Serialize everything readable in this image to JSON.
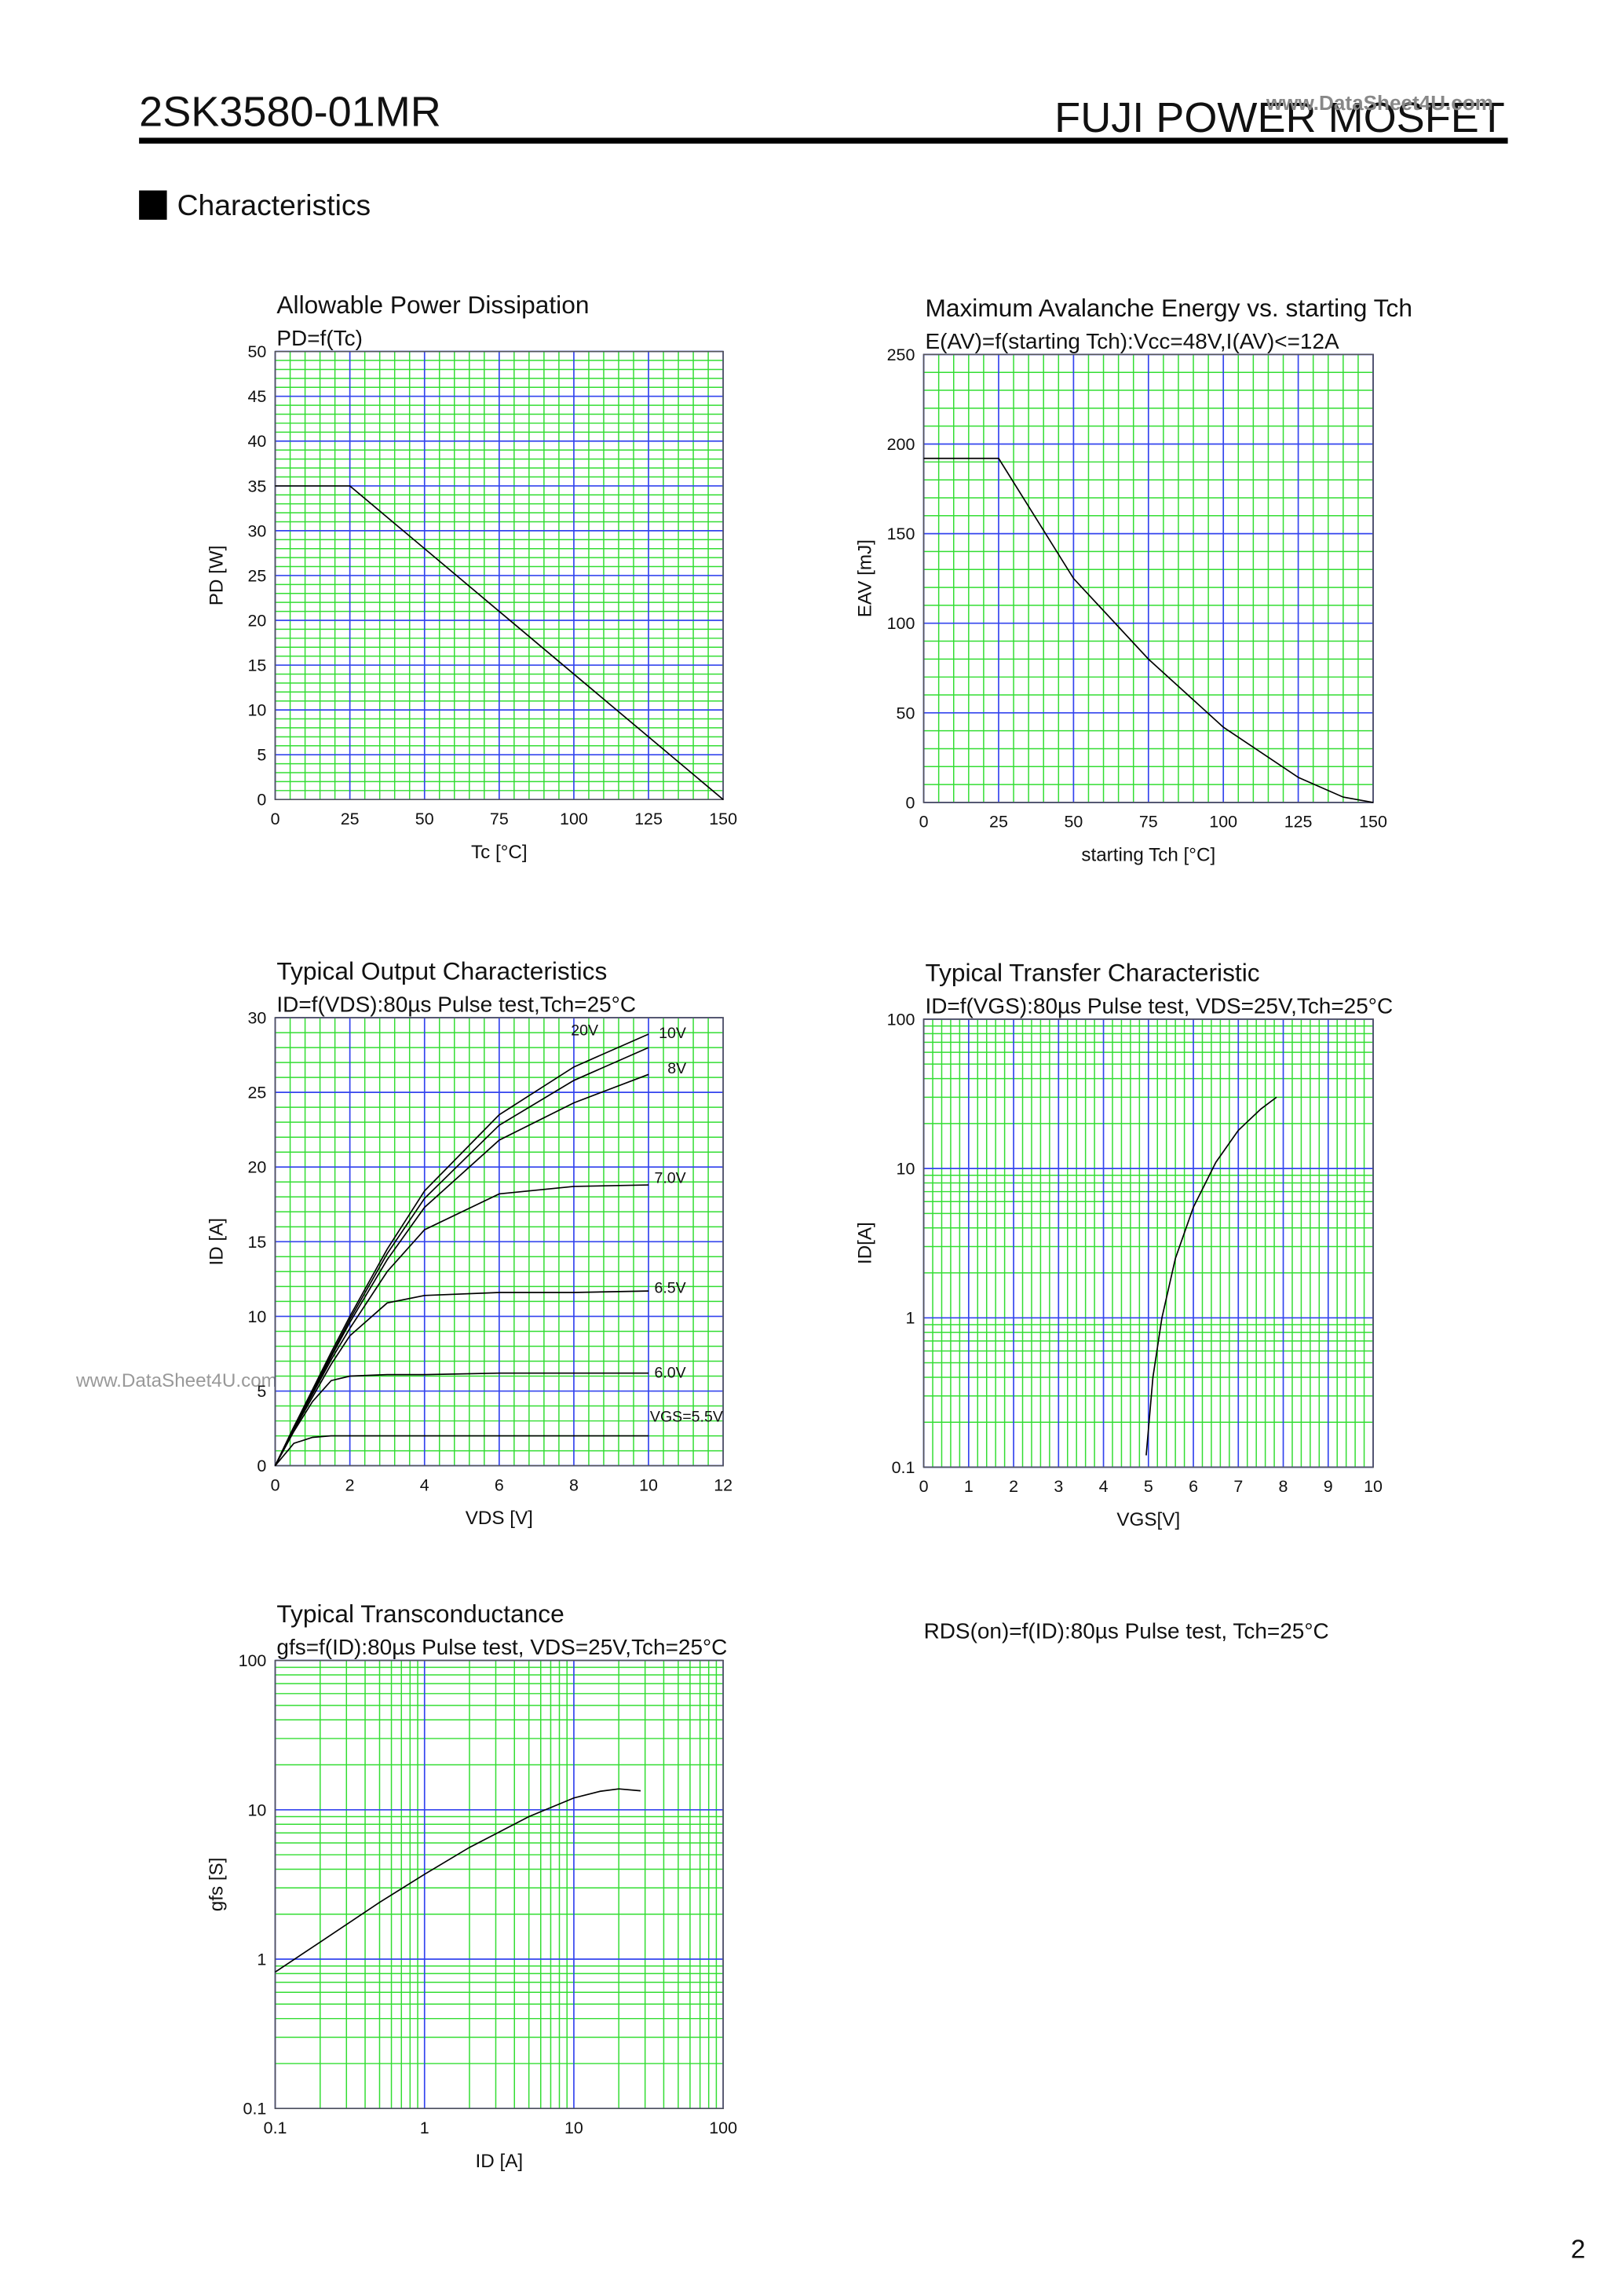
{
  "header": {
    "part": "2SK3580-01MR",
    "brand": "FUJI POWER MOSFET",
    "watermark": "www.DataSheet4U.com"
  },
  "section": "Characteristics",
  "side_watermark": "www.DataSheet4U.com",
  "rds_caption": "RDS(on)=f(ID):80µs Pulse test, Tch=25°C",
  "page_number": "2",
  "chart_data": [
    {
      "type": "line",
      "title": "Allowable Power Dissipation",
      "subtitle": "PD=f(Tc)",
      "x_label": "Tc [°C]",
      "y_label": "PD [W]",
      "xlim": [
        0,
        150
      ],
      "xticks": [
        0,
        25,
        50,
        75,
        100,
        125,
        150
      ],
      "ylim": [
        0,
        50
      ],
      "yticks": [
        0,
        5,
        10,
        15,
        20,
        25,
        30,
        35,
        40,
        45,
        50
      ],
      "grid": true,
      "minor": 5,
      "x": [
        0,
        25,
        150
      ],
      "series": [
        {
          "name": "PD",
          "color": "#000000",
          "values": [
            35,
            35,
            0
          ]
        }
      ]
    },
    {
      "type": "line",
      "title": "Maximum Avalanche Energy vs. starting Tch",
      "subtitle": "E(AV)=f(starting Tch):Vcc=48V,I(AV)<=12A",
      "x_label": "starting Tch [°C]",
      "y_label": "EAV [mJ]",
      "xlim": [
        0,
        150
      ],
      "xticks": [
        0,
        25,
        50,
        75,
        100,
        125,
        150
      ],
      "ylim": [
        0,
        250
      ],
      "yticks": [
        0,
        50,
        100,
        150,
        200,
        250
      ],
      "grid": true,
      "minor": 5,
      "x": [
        0,
        25,
        50,
        75,
        100,
        125,
        140,
        150
      ],
      "series": [
        {
          "name": "EAV",
          "color": "#000000",
          "values": [
            192,
            192,
            125,
            80,
            42,
            14,
            3,
            0
          ]
        }
      ]
    },
    {
      "type": "line",
      "title": "Typical Output Characteristics",
      "subtitle": "ID=f(VDS):80µs Pulse test,Tch=25°C",
      "x_label": "VDS [V]",
      "y_label": "ID [A]",
      "xlim": [
        0,
        12
      ],
      "xticks": [
        0,
        2,
        4,
        6,
        8,
        10,
        12
      ],
      "ylim": [
        0,
        30
      ],
      "yticks": [
        0,
        5,
        10,
        15,
        20,
        25,
        30
      ],
      "grid": true,
      "minor": 5,
      "curve_labels": true,
      "x": [
        0,
        0.5,
        1,
        1.5,
        2,
        3,
        4,
        6,
        8,
        10
      ],
      "series": [
        {
          "name": "VGS=5.5V",
          "color": "#000000",
          "values": [
            0,
            1.5,
            1.9,
            2,
            2,
            2,
            2,
            2,
            2,
            2
          ]
        },
        {
          "name": "6.0V",
          "color": "#000000",
          "values": [
            0,
            2.3,
            4.3,
            5.7,
            6.0,
            6.1,
            6.1,
            6.2,
            6.2,
            6.2
          ]
        },
        {
          "name": "6.5V",
          "color": "#000000",
          "values": [
            0,
            2.4,
            4.6,
            6.8,
            8.7,
            10.9,
            11.4,
            11.6,
            11.6,
            11.7
          ]
        },
        {
          "name": "7.0V",
          "color": "#000000",
          "values": [
            0,
            2.5,
            4.8,
            7.1,
            9.2,
            13.0,
            15.8,
            18.2,
            18.7,
            18.8
          ]
        },
        {
          "name": "8V",
          "color": "#000000",
          "values": [
            0,
            2.5,
            4.9,
            7.3,
            9.6,
            13.8,
            17.3,
            21.8,
            24.3,
            26.2
          ]
        },
        {
          "name": "10V",
          "color": "#000000",
          "values": [
            0,
            2.6,
            5.0,
            7.4,
            9.8,
            14.2,
            17.9,
            22.8,
            25.8,
            28.0
          ]
        },
        {
          "name": "20V",
          "color": "#000000",
          "values": [
            0,
            2.6,
            5.1,
            7.6,
            10.0,
            14.5,
            18.4,
            23.5,
            26.7,
            28.9
          ]
        }
      ]
    },
    {
      "type": "line",
      "title": "Typical Transfer Characteristic",
      "subtitle": "ID=f(VGS):80µs Pulse test, VDS=25V,Tch=25°C",
      "x_label": "VGS[V]",
      "y_label": "ID[A]",
      "xlim": [
        0,
        10
      ],
      "xticks": [
        0,
        1,
        2,
        3,
        4,
        5,
        6,
        7,
        8,
        9,
        10
      ],
      "ylim": [
        0.1,
        100
      ],
      "yticks": [
        0.1,
        1,
        10,
        100
      ],
      "ylog": true,
      "grid": true,
      "minor": 5,
      "x": [
        4.95,
        5.1,
        5.3,
        5.6,
        6,
        6.5,
        7,
        7.5,
        7.85
      ],
      "series": [
        {
          "name": "ID",
          "color": "#000000",
          "values": [
            0.12,
            0.4,
            1.0,
            2.5,
            5.5,
            11,
            18,
            25,
            30
          ]
        }
      ]
    },
    {
      "type": "line",
      "title": "Typical Transconductance",
      "subtitle": "gfs=f(ID):80µs Pulse test, VDS=25V,Tch=25°C",
      "x_label": "ID [A]",
      "y_label": "gfs [S]",
      "xlim": [
        0.1,
        100
      ],
      "xticks": [
        0.1,
        1,
        10,
        100
      ],
      "xlog": true,
      "ylim": [
        0.1,
        100
      ],
      "yticks": [
        0.1,
        1,
        10,
        100
      ],
      "ylog": true,
      "grid": true,
      "x": [
        0.1,
        0.2,
        0.5,
        1,
        2,
        5,
        10,
        15,
        20,
        28
      ],
      "series": [
        {
          "name": "gfs",
          "color": "#000000",
          "values": [
            0.82,
            1.3,
            2.4,
            3.7,
            5.6,
            9,
            12,
            13.3,
            13.8,
            13.4
          ]
        }
      ]
    }
  ]
}
